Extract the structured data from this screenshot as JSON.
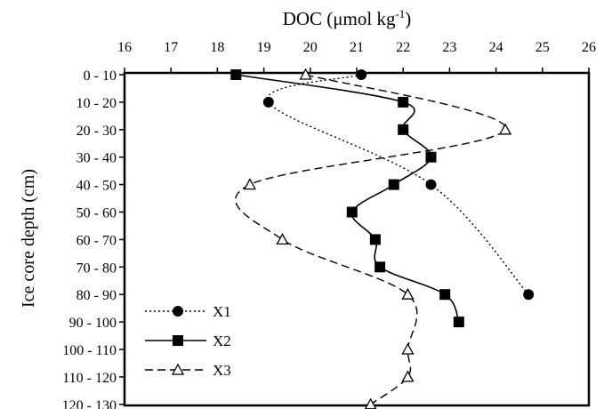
{
  "chart_data": {
    "type": "line",
    "orientation": "vertical-profile",
    "title": {
      "main": "DOC (μmol kg",
      "sup": "-1",
      "close": ")"
    },
    "xlabel_position": "top",
    "ylabel": "Ice core depth (cm)",
    "xlim": [
      16,
      26
    ],
    "x_ticks": [
      "16",
      "17",
      "18",
      "19",
      "20",
      "21",
      "22",
      "23",
      "24",
      "25",
      "26"
    ],
    "categories": [
      "0 - 10",
      "10 - 20",
      "20 - 30",
      "30 - 40",
      "40 - 50",
      "50 - 60",
      "60 - 70",
      "70 - 80",
      "80 - 90",
      "90 - 100",
      "100 - 110",
      "110 - 120",
      "120 - 130"
    ],
    "legend_position": "bottom-left",
    "series": [
      {
        "name": "X1",
        "marker": "circle",
        "line": "dotted",
        "points": [
          [
            0,
            21.1
          ],
          [
            1,
            19.1
          ],
          [
            4,
            22.6
          ],
          [
            8,
            24.7
          ]
        ]
      },
      {
        "name": "X2",
        "marker": "square",
        "line": "solid",
        "points": [
          [
            0,
            18.4
          ],
          [
            1,
            22.0
          ],
          [
            2,
            22.0
          ],
          [
            3,
            22.6
          ],
          [
            4,
            21.8
          ],
          [
            5,
            20.9
          ],
          [
            6,
            21.4
          ],
          [
            7,
            21.5
          ],
          [
            8,
            22.9
          ],
          [
            9,
            23.2
          ]
        ]
      },
      {
        "name": "X3",
        "marker": "triangle-open",
        "line": "dashed",
        "points": [
          [
            0,
            19.9
          ],
          [
            2,
            24.2
          ],
          [
            4,
            18.7
          ],
          [
            6,
            19.4
          ],
          [
            8,
            22.1
          ],
          [
            10,
            22.1
          ],
          [
            11,
            22.1
          ],
          [
            12,
            21.3
          ]
        ]
      }
    ]
  }
}
